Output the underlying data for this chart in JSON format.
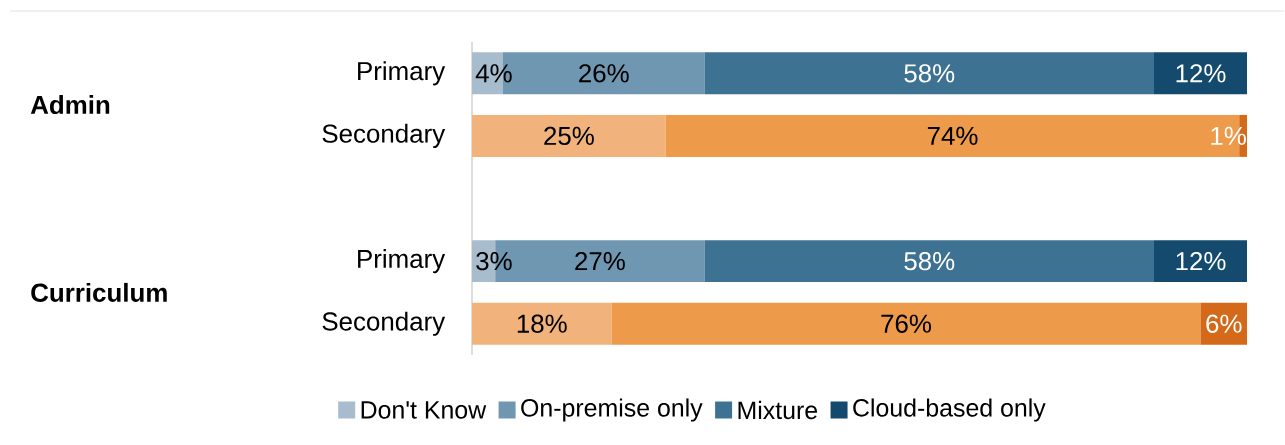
{
  "chart_data": {
    "type": "bar",
    "orientation": "horizontal",
    "stacked": true,
    "categories": [
      "Primary",
      "Secondary",
      null,
      "Primary",
      "Secondary"
    ],
    "series": [
      {
        "name": "Don't Know",
        "color": "#a7bccc",
        "colors": [
          "#a7bccc",
          "#f2b27c",
          null,
          "#a7bccc",
          "#f2b27c"
        ],
        "values": [
          4,
          25,
          null,
          3,
          18
        ],
        "value_labels": [
          "4%",
          "25%",
          null,
          "3%",
          "18%"
        ]
      },
      {
        "name": "On-premise only",
        "color": "#7097b1",
        "colors": [
          "#7097b1",
          "#ed9a4b",
          null,
          "#7097b1",
          "#ed9a4b"
        ],
        "values": [
          26,
          74,
          null,
          27,
          76
        ],
        "value_labels": [
          "26%",
          "74%",
          null,
          "27%",
          "76%"
        ]
      },
      {
        "name": "Mixture",
        "color": "#3e7293",
        "colors": [
          "#3e7293",
          "#d5691a",
          null,
          "#3e7293",
          "#d5691a"
        ],
        "values": [
          58,
          1,
          null,
          58,
          6
        ],
        "value_labels": [
          "58%",
          "1%",
          null,
          "58%",
          "6%"
        ]
      },
      {
        "name": "Cloud-based only",
        "color": "#134a6e",
        "colors": [
          "#134a6e",
          null,
          null,
          "#134a6e",
          null
        ],
        "values": [
          12,
          null,
          null,
          12,
          null
        ],
        "value_labels": [
          "12%",
          null,
          null,
          "12%",
          null
        ]
      }
    ],
    "xlim": [
      0,
      100
    ],
    "tick_labels": "y",
    "legend": "bottom",
    "annotations": [
      "Admin",
      "Curriculum"
    ]
  }
}
